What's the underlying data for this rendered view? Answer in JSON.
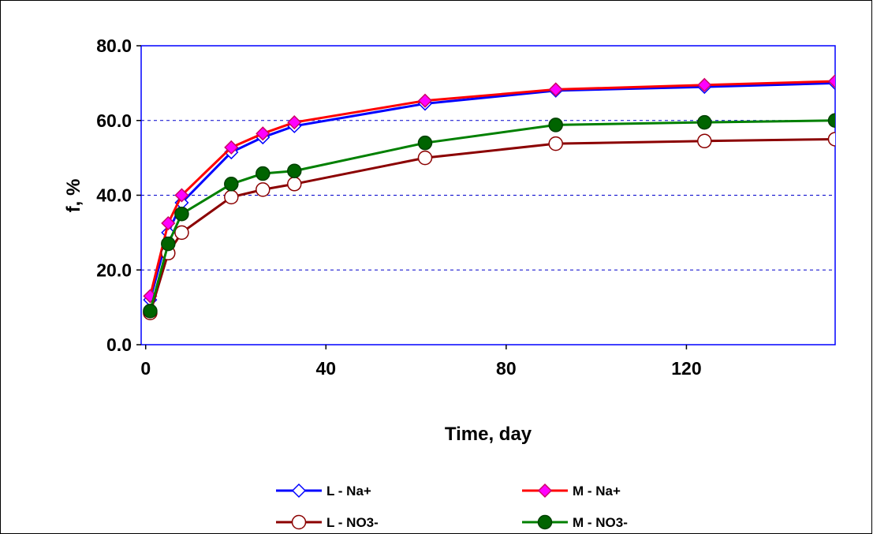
{
  "chart_data": {
    "type": "line",
    "title": "",
    "xlabel": "Time, day",
    "ylabel": "f, %",
    "xlim": [
      -1,
      153
    ],
    "ylim": [
      0,
      80
    ],
    "x_ticks": [
      0,
      40,
      80,
      120
    ],
    "x_tick_labels": [
      "0",
      "40",
      "80",
      "120"
    ],
    "y_ticks": [
      0,
      20,
      40,
      60,
      80
    ],
    "y_tick_labels": [
      "0.0",
      "20.0",
      "40.0",
      "60.0",
      "80.0"
    ],
    "grid": "horizontal dashed",
    "legend_position": "bottom",
    "series": [
      {
        "name": "L - Na+",
        "color": "#0000ff",
        "marker": "diamond-open",
        "points": [
          [
            1,
            12
          ],
          [
            5,
            30
          ],
          [
            8,
            38
          ],
          [
            19,
            51.5
          ],
          [
            26,
            55.5
          ],
          [
            33,
            58.5
          ],
          [
            62,
            64.5
          ],
          [
            91,
            68
          ],
          [
            124,
            69
          ],
          [
            153,
            70
          ]
        ]
      },
      {
        "name": "M - Na+",
        "color": "#ff0000",
        "marker": "diamond-magenta",
        "points": [
          [
            1,
            13
          ],
          [
            5,
            32.5
          ],
          [
            8,
            40
          ],
          [
            19,
            52.8
          ],
          [
            26,
            56.5
          ],
          [
            33,
            59.5
          ],
          [
            62,
            65.3
          ],
          [
            91,
            68.3
          ],
          [
            124,
            69.5
          ],
          [
            153,
            70.5
          ]
        ]
      },
      {
        "name": "L - NO3-",
        "color": "#8b0000",
        "marker": "circle-open",
        "points": [
          [
            1,
            8.5
          ],
          [
            5,
            24.5
          ],
          [
            8,
            30
          ],
          [
            19,
            39.5
          ],
          [
            26,
            41.5
          ],
          [
            33,
            43
          ],
          [
            62,
            50
          ],
          [
            91,
            53.8
          ],
          [
            124,
            54.5
          ],
          [
            153,
            55
          ]
        ]
      },
      {
        "name": "M - NO3-",
        "color": "#008000",
        "marker": "circle-filled",
        "points": [
          [
            1,
            9
          ],
          [
            5,
            27
          ],
          [
            8,
            35
          ],
          [
            19,
            43
          ],
          [
            26,
            45.8
          ],
          [
            33,
            46.5
          ],
          [
            62,
            54
          ],
          [
            91,
            58.8
          ],
          [
            124,
            59.5
          ],
          [
            153,
            60
          ]
        ]
      }
    ]
  }
}
